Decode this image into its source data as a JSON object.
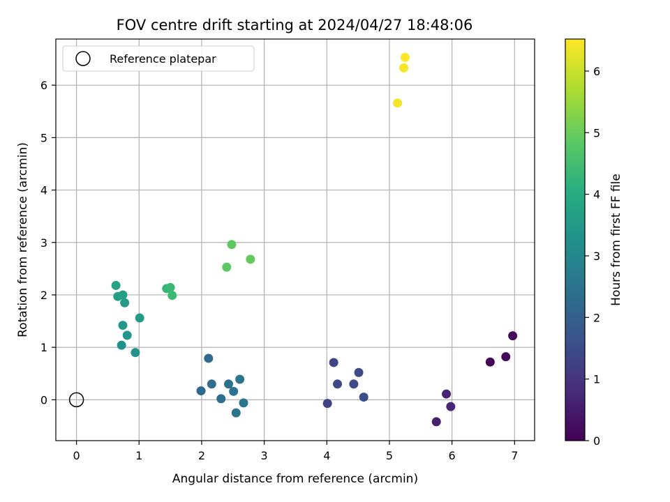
{
  "chart_data": {
    "type": "scatter",
    "title": "FOV centre drift starting at 2024/04/27 18:48:06",
    "xlabel": "Angular distance from reference (arcmin)",
    "ylabel": "Rotation from reference (arcmin)",
    "xlim": [
      -0.33,
      7.32
    ],
    "ylim": [
      -0.78,
      6.88
    ],
    "xticks": [
      0,
      1,
      2,
      3,
      4,
      5,
      6,
      7
    ],
    "yticks": [
      0,
      1,
      2,
      3,
      4,
      5,
      6
    ],
    "grid": true,
    "legend": {
      "placement": "top-left",
      "entries": [
        {
          "label": "Reference platepar",
          "marker": "open-circle"
        }
      ]
    },
    "reference_point": {
      "x": 0,
      "y": 0
    },
    "colorbar": {
      "label": "Hours from first FF file",
      "colormap": "viridis",
      "range": [
        0,
        6.52
      ],
      "ticks": [
        0,
        1,
        2,
        3,
        4,
        5,
        6
      ]
    },
    "points": [
      {
        "x": 6.61,
        "y": 0.72,
        "c": 0.05
      },
      {
        "x": 6.86,
        "y": 0.82,
        "c": 0.12
      },
      {
        "x": 6.97,
        "y": 1.22,
        "c": 0.2
      },
      {
        "x": 5.75,
        "y": -0.42,
        "c": 0.55
      },
      {
        "x": 5.91,
        "y": 0.11,
        "c": 0.65
      },
      {
        "x": 5.98,
        "y": -0.13,
        "c": 0.72
      },
      {
        "x": 4.01,
        "y": -0.07,
        "c": 1.3
      },
      {
        "x": 4.11,
        "y": 0.71,
        "c": 1.35
      },
      {
        "x": 4.17,
        "y": 0.3,
        "c": 1.4
      },
      {
        "x": 4.43,
        "y": 0.3,
        "c": 1.45
      },
      {
        "x": 4.51,
        "y": 0.52,
        "c": 1.5
      },
      {
        "x": 4.59,
        "y": 0.05,
        "c": 1.55
      },
      {
        "x": 1.99,
        "y": 0.17,
        "c": 2.2
      },
      {
        "x": 2.11,
        "y": 0.79,
        "c": 2.25
      },
      {
        "x": 2.16,
        "y": 0.3,
        "c": 2.3
      },
      {
        "x": 2.31,
        "y": 0.02,
        "c": 2.35
      },
      {
        "x": 2.43,
        "y": 0.3,
        "c": 2.4
      },
      {
        "x": 2.51,
        "y": 0.16,
        "c": 2.45
      },
      {
        "x": 2.55,
        "y": -0.25,
        "c": 2.5
      },
      {
        "x": 2.61,
        "y": 0.39,
        "c": 2.55
      },
      {
        "x": 2.67,
        "y": -0.06,
        "c": 2.6
      },
      {
        "x": 0.72,
        "y": 1.04,
        "c": 3.3
      },
      {
        "x": 0.94,
        "y": 0.9,
        "c": 3.35
      },
      {
        "x": 0.81,
        "y": 1.23,
        "c": 3.4
      },
      {
        "x": 0.74,
        "y": 1.42,
        "c": 3.45
      },
      {
        "x": 1.01,
        "y": 1.56,
        "c": 3.5
      },
      {
        "x": 0.77,
        "y": 1.85,
        "c": 3.55
      },
      {
        "x": 0.66,
        "y": 1.97,
        "c": 3.6
      },
      {
        "x": 0.74,
        "y": 2.0,
        "c": 3.65
      },
      {
        "x": 0.63,
        "y": 2.18,
        "c": 3.7
      },
      {
        "x": 1.44,
        "y": 2.12,
        "c": 4.3
      },
      {
        "x": 1.5,
        "y": 2.14,
        "c": 4.35
      },
      {
        "x": 1.53,
        "y": 1.99,
        "c": 4.4
      },
      {
        "x": 2.4,
        "y": 2.53,
        "c": 4.85
      },
      {
        "x": 2.48,
        "y": 2.96,
        "c": 4.9
      },
      {
        "x": 2.78,
        "y": 2.68,
        "c": 4.95
      },
      {
        "x": 5.13,
        "y": 5.66,
        "c": 6.4
      },
      {
        "x": 5.23,
        "y": 6.33,
        "c": 6.45
      },
      {
        "x": 5.25,
        "y": 6.53,
        "c": 6.5
      }
    ]
  }
}
